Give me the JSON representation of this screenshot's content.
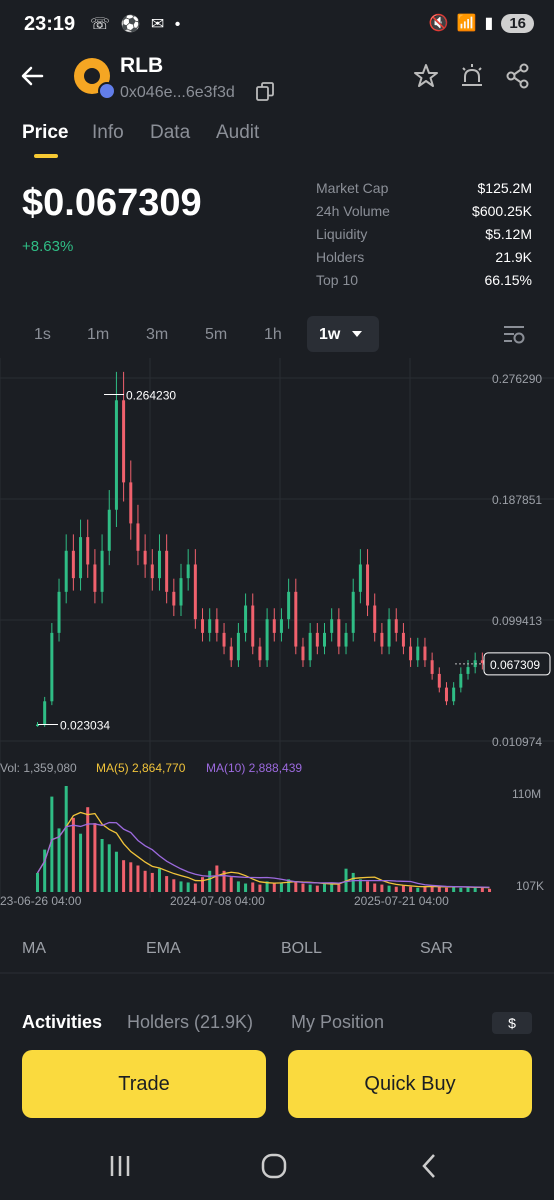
{
  "status_bar": {
    "time": "23:19",
    "battery": "16"
  },
  "token": {
    "symbol": "RLB",
    "address": "0x046e...6e3f3d"
  },
  "tabs": [
    "Price",
    "Info",
    "Data",
    "Audit"
  ],
  "price": {
    "value": "$0.067309",
    "change": "+8.63%"
  },
  "stats": [
    {
      "label": "Market Cap",
      "value": "$125.2M"
    },
    {
      "label": "24h Volume",
      "value": "$600.25K"
    },
    {
      "label": "Liquidity",
      "value": "$5.12M"
    },
    {
      "label": "Holders",
      "value": "21.9K"
    },
    {
      "label": "Top 10",
      "value": "66.15%"
    }
  ],
  "intervals": [
    "1s",
    "1m",
    "3m",
    "5m",
    "1h"
  ],
  "selected_interval": "1w",
  "chart_data": {
    "type": "candlestick",
    "y_ticks": [
      "0.276290",
      "0.187851",
      "0.099413",
      "0.010974"
    ],
    "ylim": [
      0.010974,
      0.27629
    ],
    "current_price_label": "0.067309",
    "annotations": {
      "high": "0.264230",
      "low": "0.023034"
    },
    "x_ticks": [
      "23-06-26 04:00",
      "2024-07-08 04:00",
      "2025-07-21 04:00"
    ],
    "close_series": [
      0.023,
      0.04,
      0.09,
      0.12,
      0.15,
      0.13,
      0.16,
      0.14,
      0.12,
      0.15,
      0.18,
      0.26,
      0.2,
      0.17,
      0.15,
      0.14,
      0.13,
      0.15,
      0.12,
      0.11,
      0.13,
      0.14,
      0.1,
      0.09,
      0.1,
      0.09,
      0.08,
      0.07,
      0.09,
      0.11,
      0.08,
      0.07,
      0.1,
      0.09,
      0.1,
      0.12,
      0.08,
      0.07,
      0.09,
      0.08,
      0.09,
      0.1,
      0.08,
      0.09,
      0.12,
      0.14,
      0.11,
      0.09,
      0.08,
      0.1,
      0.09,
      0.08,
      0.07,
      0.08,
      0.07,
      0.06,
      0.05,
      0.04,
      0.05,
      0.06,
      0.065,
      0.07,
      0.068,
      0.067
    ],
    "volume": {
      "label": "Vol: 1,359,080",
      "ma5_label": "MA(5) 2,864,770",
      "ma10_label": "MA(10) 2,888,439",
      "y_ticks": [
        "110M",
        "107K"
      ],
      "values": [
        18,
        40,
        90,
        60,
        100,
        70,
        55,
        80,
        65,
        50,
        45,
        38,
        30,
        28,
        25,
        20,
        18,
        22,
        15,
        12,
        10,
        9,
        8,
        14,
        20,
        25,
        20,
        14,
        10,
        8,
        9,
        7,
        10,
        8,
        9,
        12,
        10,
        8,
        7,
        6,
        9,
        8,
        7,
        22,
        18,
        12,
        10,
        8,
        7,
        6,
        5,
        6,
        5,
        4,
        5,
        6,
        5,
        4,
        5,
        4,
        5,
        4,
        4,
        3
      ],
      "ma_color": "#f0c33a",
      "ma10_color": "#9c6ade"
    },
    "up_color": "#2fbd85",
    "down_color": "#f0616d"
  },
  "indicators": [
    "MA",
    "EMA",
    "BOLL",
    "SAR"
  ],
  "activity_tabs": [
    "Activities",
    "Holders (21.9K)",
    "My Position"
  ],
  "currency_label": "$",
  "buttons": {
    "trade": "Trade",
    "quick_buy": "Quick Buy"
  }
}
